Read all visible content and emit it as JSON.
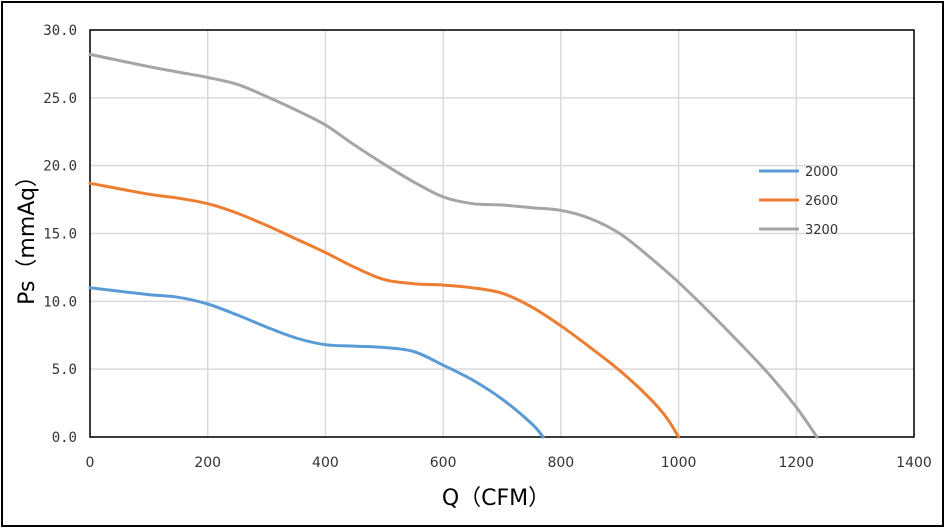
{
  "chart_data": {
    "type": "line",
    "xlabel": "Q（CFM）",
    "ylabel": "Ps（mmAq）",
    "xlim": [
      0,
      1400
    ],
    "ylim": [
      0,
      30
    ],
    "xticks": [
      "0",
      "200",
      "400",
      "600",
      "800",
      "1000",
      "1200",
      "1400"
    ],
    "yticks": [
      "0.0",
      "5.0",
      "10.0",
      "15.0",
      "20.0",
      "25.0",
      "30.0"
    ],
    "xtick_values": [
      0,
      200,
      400,
      600,
      800,
      1000,
      1200,
      1400
    ],
    "ytick_values": [
      0,
      5,
      10,
      15,
      20,
      25,
      30
    ],
    "grid": true,
    "legend_position": "right",
    "series": [
      {
        "name": "2000",
        "color": "#5b9bd5",
        "points": [
          [
            0,
            11.0
          ],
          [
            100,
            10.5
          ],
          [
            150,
            10.3
          ],
          [
            200,
            9.8
          ],
          [
            250,
            9.0
          ],
          [
            300,
            8.1
          ],
          [
            350,
            7.3
          ],
          [
            400,
            6.8
          ],
          [
            450,
            6.7
          ],
          [
            500,
            6.6
          ],
          [
            550,
            6.3
          ],
          [
            600,
            5.3
          ],
          [
            650,
            4.2
          ],
          [
            700,
            2.8
          ],
          [
            750,
            1.0
          ],
          [
            770,
            0.0
          ]
        ]
      },
      {
        "name": "2600",
        "color": "#ed7d31",
        "points": [
          [
            0,
            18.7
          ],
          [
            100,
            17.9
          ],
          [
            150,
            17.6
          ],
          [
            200,
            17.2
          ],
          [
            250,
            16.5
          ],
          [
            300,
            15.6
          ],
          [
            350,
            14.6
          ],
          [
            400,
            13.6
          ],
          [
            450,
            12.5
          ],
          [
            500,
            11.6
          ],
          [
            550,
            11.3
          ],
          [
            600,
            11.2
          ],
          [
            650,
            11.0
          ],
          [
            700,
            10.6
          ],
          [
            750,
            9.6
          ],
          [
            800,
            8.2
          ],
          [
            850,
            6.6
          ],
          [
            900,
            4.9
          ],
          [
            950,
            2.9
          ],
          [
            980,
            1.4
          ],
          [
            1000,
            0.0
          ]
        ]
      },
      {
        "name": "3200",
        "color": "#a5a5a5",
        "points": [
          [
            0,
            28.2
          ],
          [
            100,
            27.3
          ],
          [
            150,
            26.9
          ],
          [
            200,
            26.5
          ],
          [
            250,
            26.0
          ],
          [
            300,
            25.1
          ],
          [
            350,
            24.1
          ],
          [
            400,
            23.0
          ],
          [
            450,
            21.5
          ],
          [
            500,
            20.1
          ],
          [
            550,
            18.8
          ],
          [
            600,
            17.7
          ],
          [
            650,
            17.2
          ],
          [
            700,
            17.1
          ],
          [
            750,
            16.9
          ],
          [
            800,
            16.7
          ],
          [
            850,
            16.1
          ],
          [
            900,
            15.0
          ],
          [
            950,
            13.3
          ],
          [
            1000,
            11.4
          ],
          [
            1050,
            9.3
          ],
          [
            1100,
            7.1
          ],
          [
            1150,
            4.8
          ],
          [
            1200,
            2.2
          ],
          [
            1235,
            0.0
          ]
        ]
      }
    ]
  }
}
